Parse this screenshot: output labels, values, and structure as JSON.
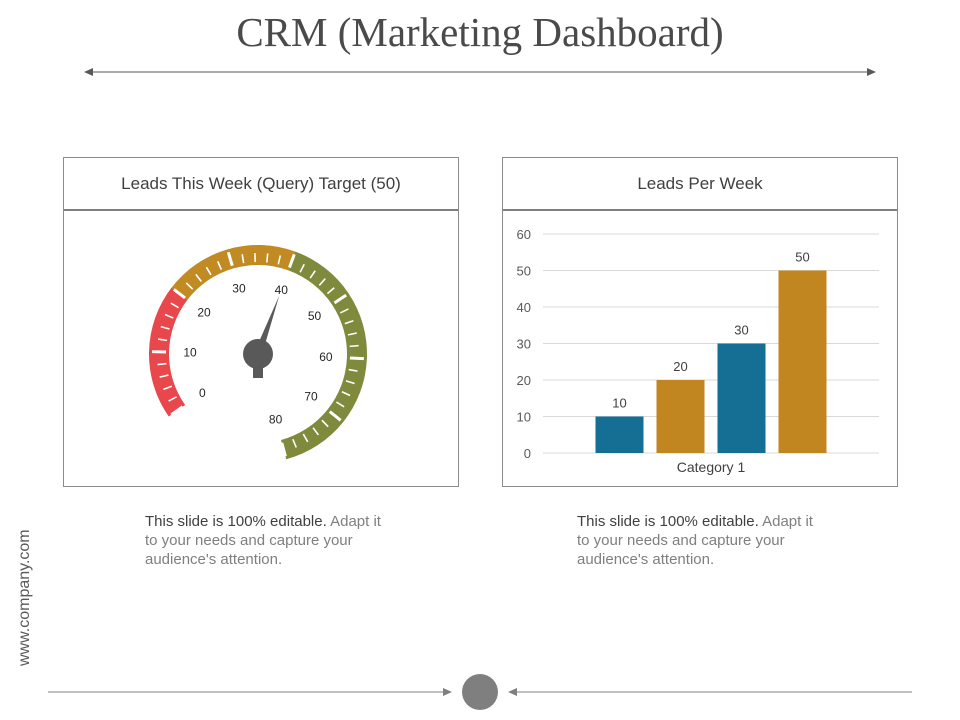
{
  "page": {
    "title": "CRM (Marketing Dashboard)",
    "side_url": "www.company.com"
  },
  "gauge_panel": {
    "header": "Leads This Week (Query) Target (50)",
    "caption_lead": "This slide is 100% editable.",
    "caption_rest": " Adapt it to your needs and capture your audience's attention."
  },
  "bar_panel": {
    "header": "Leads Per Week",
    "caption_lead": "This slide is 100% editable.",
    "caption_rest": " Adapt it to your needs and capture your audience's attention."
  },
  "chart_data": [
    {
      "type": "gauge",
      "title": "Leads This Week (Query) Target (50)",
      "range": [
        0,
        80
      ],
      "ticks": [
        0,
        10,
        20,
        30,
        40,
        50,
        60,
        70,
        80
      ],
      "value": 40,
      "bands": [
        {
          "from": 0,
          "to": 20,
          "color": "#e8474c"
        },
        {
          "from": 20,
          "to": 40,
          "color": "#c18a23"
        },
        {
          "from": 40,
          "to": 80,
          "color": "#7f8a3c"
        }
      ]
    },
    {
      "type": "bar",
      "title": "Leads Per Week",
      "categories": [
        "Category 1"
      ],
      "series": [
        {
          "values": [
            10
          ],
          "color": "#156e94"
        },
        {
          "values": [
            20
          ],
          "color": "#c1861f"
        },
        {
          "values": [
            30
          ],
          "color": "#156e94"
        },
        {
          "values": [
            50
          ],
          "color": "#c1861f"
        }
      ],
      "ylim": [
        0,
        60
      ],
      "yticks": [
        0,
        10,
        20,
        30,
        40,
        50,
        60
      ],
      "grid": true,
      "data_labels": true
    }
  ]
}
